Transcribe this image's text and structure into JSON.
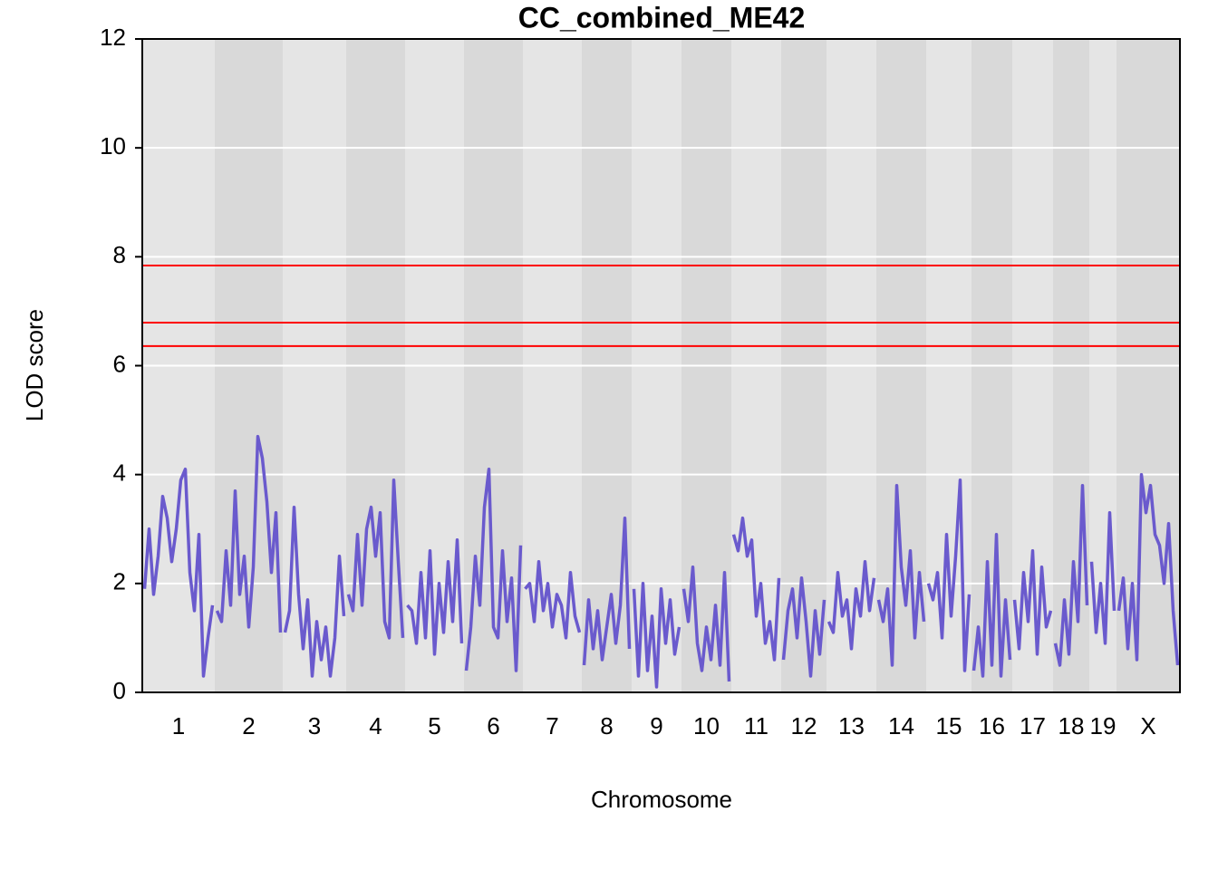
{
  "chart_data": {
    "type": "line",
    "title": "CC_combined_ME42",
    "xlabel": "Chromosome",
    "ylabel": "LOD score",
    "color": "#6a5acd",
    "ylim": [
      0,
      12
    ],
    "yticks": [
      0,
      2,
      4,
      6,
      8,
      10,
      12
    ],
    "grid": true,
    "thresholds": {
      "color": "#ff0000",
      "values": [
        7.84,
        6.79,
        6.36
      ]
    },
    "chromosomes": [
      {
        "label": "1",
        "values": [
          1.9,
          3.0,
          1.8,
          2.5,
          3.6,
          3.2,
          2.4,
          3.0,
          3.9,
          4.1,
          2.2,
          1.5,
          2.9,
          0.3,
          1.0,
          1.6
        ]
      },
      {
        "label": "2",
        "values": [
          1.5,
          1.3,
          2.6,
          1.6,
          3.7,
          1.8,
          2.5,
          1.2,
          2.3,
          4.7,
          4.3,
          3.5,
          2.2,
          3.3,
          1.1
        ]
      },
      {
        "label": "3",
        "values": [
          1.1,
          1.5,
          3.4,
          1.8,
          0.8,
          1.7,
          0.3,
          1.3,
          0.6,
          1.2,
          0.3,
          1.0,
          2.5,
          1.4
        ]
      },
      {
        "label": "4",
        "values": [
          1.8,
          1.5,
          2.9,
          1.6,
          3.0,
          3.4,
          2.5,
          3.3,
          1.3,
          1.0,
          3.9,
          2.4,
          1.0
        ]
      },
      {
        "label": "5",
        "values": [
          1.6,
          1.5,
          0.9,
          2.2,
          1.0,
          2.6,
          0.7,
          2.0,
          1.1,
          2.4,
          1.3,
          2.8,
          0.9
        ]
      },
      {
        "label": "6",
        "values": [
          0.4,
          1.2,
          2.5,
          1.6,
          3.4,
          4.1,
          1.2,
          1.0,
          2.6,
          1.3,
          2.1,
          0.4,
          2.7
        ]
      },
      {
        "label": "7",
        "values": [
          1.9,
          2.0,
          1.3,
          2.4,
          1.5,
          2.0,
          1.2,
          1.8,
          1.6,
          1.0,
          2.2,
          1.4,
          1.1
        ]
      },
      {
        "label": "8",
        "values": [
          0.5,
          1.7,
          0.8,
          1.5,
          0.6,
          1.2,
          1.8,
          0.9,
          1.6,
          3.2,
          0.8
        ]
      },
      {
        "label": "9",
        "values": [
          1.9,
          0.3,
          2.0,
          0.4,
          1.4,
          0.1,
          1.9,
          0.9,
          1.7,
          0.7,
          1.2
        ]
      },
      {
        "label": "10",
        "values": [
          1.9,
          1.3,
          2.3,
          0.9,
          0.4,
          1.2,
          0.6,
          1.6,
          0.5,
          2.2,
          0.2
        ]
      },
      {
        "label": "11",
        "values": [
          2.9,
          2.6,
          3.2,
          2.5,
          2.8,
          1.4,
          2.0,
          0.9,
          1.3,
          0.6,
          2.1
        ]
      },
      {
        "label": "12",
        "values": [
          0.6,
          1.5,
          1.9,
          1.0,
          2.1,
          1.3,
          0.3,
          1.5,
          0.7,
          1.7
        ]
      },
      {
        "label": "13",
        "values": [
          1.3,
          1.1,
          2.2,
          1.4,
          1.7,
          0.8,
          1.9,
          1.4,
          2.4,
          1.5,
          2.1
        ]
      },
      {
        "label": "14",
        "values": [
          1.7,
          1.3,
          1.9,
          0.5,
          3.8,
          2.3,
          1.6,
          2.6,
          1.0,
          2.2,
          1.3
        ]
      },
      {
        "label": "15",
        "values": [
          2.0,
          1.7,
          2.2,
          1.0,
          2.9,
          1.4,
          2.5,
          3.9,
          0.4,
          1.8
        ]
      },
      {
        "label": "16",
        "values": [
          0.4,
          1.2,
          0.3,
          2.4,
          0.5,
          2.9,
          0.3,
          1.7,
          0.6
        ]
      },
      {
        "label": "17",
        "values": [
          1.7,
          0.8,
          2.2,
          1.3,
          2.6,
          0.7,
          2.3,
          1.2,
          1.5
        ]
      },
      {
        "label": "18",
        "values": [
          0.9,
          0.5,
          1.7,
          0.7,
          2.4,
          1.3,
          3.8,
          1.6
        ]
      },
      {
        "label": "19",
        "values": [
          2.4,
          1.1,
          2.0,
          0.9,
          3.3,
          1.5
        ]
      },
      {
        "label": "X",
        "values": [
          1.5,
          2.1,
          0.8,
          2.0,
          0.6,
          4.0,
          3.3,
          3.8,
          2.9,
          2.7,
          2.0,
          3.1,
          1.5,
          0.5
        ]
      }
    ]
  }
}
